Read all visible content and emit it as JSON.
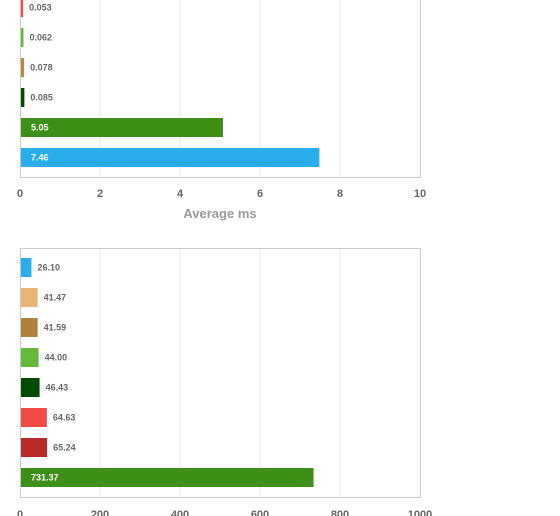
{
  "chart_data": [
    {
      "type": "bar",
      "orientation": "horizontal",
      "xlabel": "Average ms",
      "xlim": [
        0,
        10
      ],
      "xticks": [
        "0",
        "2",
        "4",
        "6",
        "8",
        "10"
      ],
      "grid": true,
      "bars": [
        {
          "value": 0.053,
          "label": "0.053",
          "color": "#f24a45"
        },
        {
          "value": 0.062,
          "label": "0.062",
          "color": "#63b939"
        },
        {
          "value": 0.078,
          "label": "0.078",
          "color": "#b88a45"
        },
        {
          "value": 0.085,
          "label": "0.085",
          "color": "#014b03"
        },
        {
          "value": 5.05,
          "label": "5.05",
          "color": "#3e8f17"
        },
        {
          "value": 7.46,
          "label": "7.46",
          "color": "#29aeeb"
        }
      ]
    },
    {
      "type": "bar",
      "orientation": "horizontal",
      "xlabel": "",
      "xlim": [
        0,
        1000
      ],
      "xticks": [
        "0",
        "200",
        "400",
        "600",
        "800",
        "1000"
      ],
      "grid": true,
      "bars": [
        {
          "value": 26.1,
          "label": "26.10",
          "color": "#29aeeb"
        },
        {
          "value": 41.47,
          "label": "41.47",
          "color": "#eab574"
        },
        {
          "value": 41.59,
          "label": "41.59",
          "color": "#b0803a"
        },
        {
          "value": 44.0,
          "label": "44.00",
          "color": "#63b939"
        },
        {
          "value": 46.43,
          "label": "46.43",
          "color": "#014b03"
        },
        {
          "value": 64.63,
          "label": "64.63",
          "color": "#f24a45"
        },
        {
          "value": 65.24,
          "label": "65.24",
          "color": "#b92a26"
        },
        {
          "value": 731.37,
          "label": "731.37",
          "color": "#3e8f17"
        }
      ]
    }
  ]
}
